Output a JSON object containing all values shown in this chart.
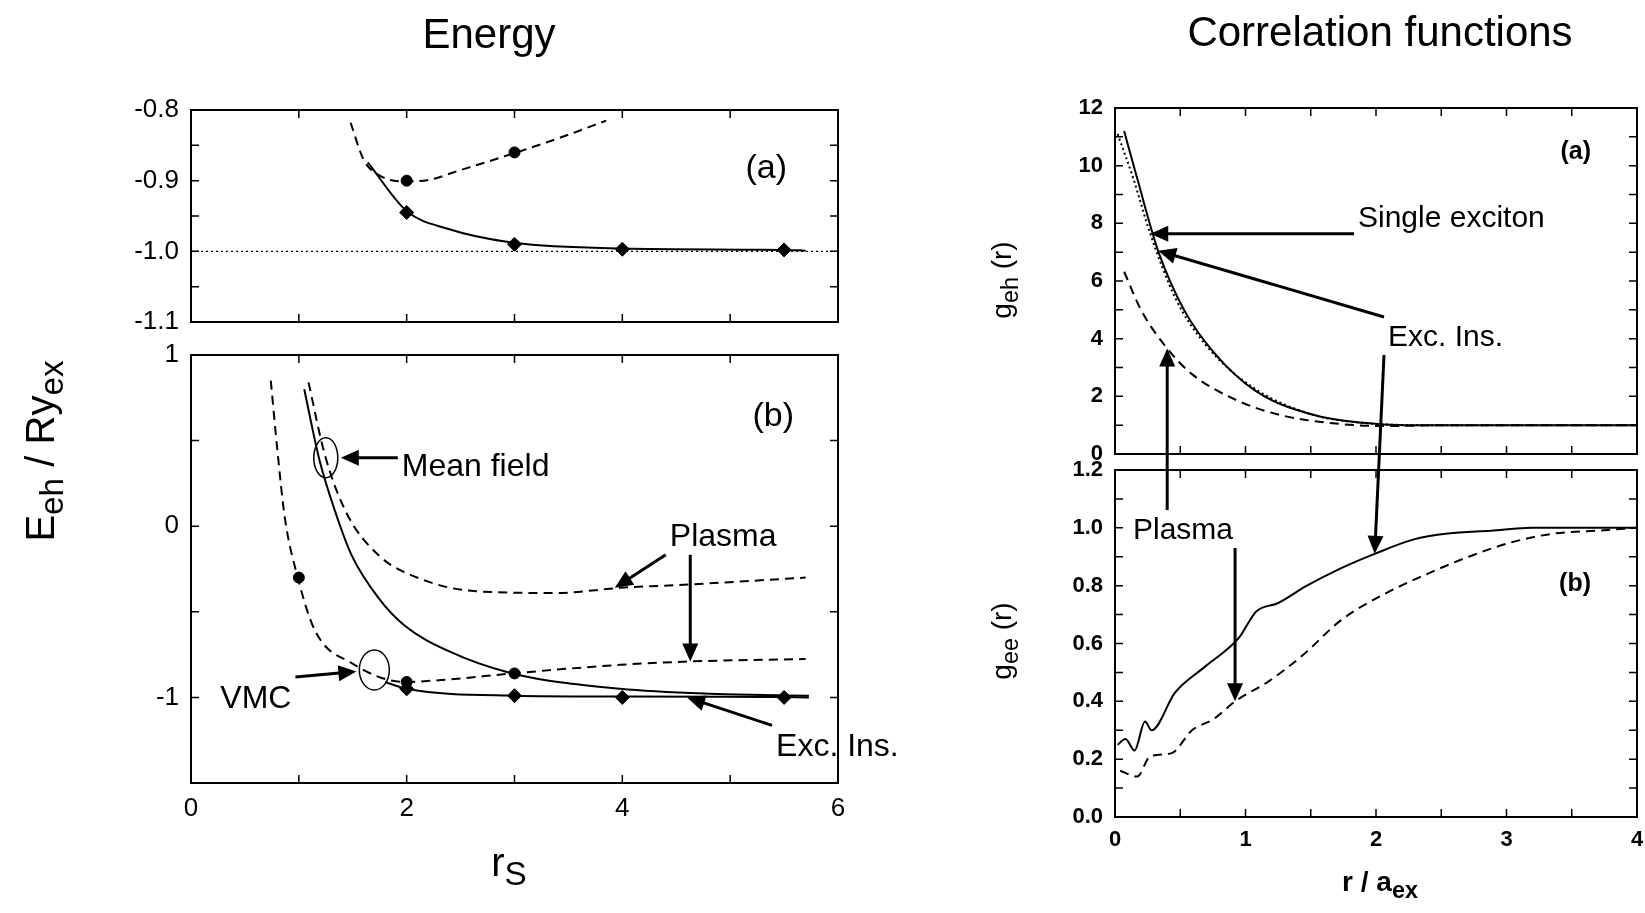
{
  "chart_data": [
    {
      "type": "line",
      "title": "Energy",
      "xlim": [
        0,
        6
      ],
      "xticks": [
        0,
        1,
        2,
        3,
        4,
        5,
        6
      ],
      "ylim": [
        -1.1,
        -0.8
      ],
      "yticks": [
        -1.1,
        {
          "value": -1.05,
          "label": null
        },
        {
          "value": -1.0,
          "label": "-1.0"
        },
        {
          "value": -0.95,
          "label": null
        },
        -0.9,
        {
          "value": -0.85,
          "label": null
        },
        -0.8
      ],
      "tick_labels": "y",
      "annotations": [
        "(a)"
      ],
      "ref_lines": [
        {
          "axis": "y",
          "value": -1.0,
          "line_style": "dotted",
          "color": "#000000"
        }
      ],
      "series": [
        {
          "color": "#000000",
          "line_style": "dashed",
          "marker": "none",
          "x": [
            1.48,
            1.6,
            1.75,
            2.0,
            2.2,
            2.5,
            3.0,
            3.5,
            3.85
          ],
          "values": [
            -0.818,
            -0.87,
            -0.893,
            -0.901,
            -0.899,
            -0.885,
            -0.861,
            -0.835,
            -0.815
          ]
        },
        {
          "type": "scatter",
          "color": "#000000",
          "marker": "circle",
          "x": [
            2,
            3
          ],
          "values": [
            -0.9,
            -0.86
          ]
        },
        {
          "color": "#000000",
          "line_style": "solid",
          "marker": "none",
          "x": [
            1.64,
            2.0,
            2.38,
            3.0,
            4.0,
            5.5,
            5.7
          ],
          "values": [
            -0.874,
            -0.943,
            -0.968,
            -0.988,
            -0.996,
            -0.998,
            -0.999
          ]
        },
        {
          "type": "scatter",
          "color": "#000000",
          "marker": "diamond",
          "x": [
            2,
            3,
            4,
            5.5
          ],
          "values": [
            -0.945,
            -0.99,
            -0.997,
            -0.998
          ]
        }
      ]
    },
    {
      "type": "line",
      "xlabel": "r$_{S}$",
      "ylabel": "E$_{eh}$ / Ry$_{ex}$",
      "xlim": [
        0,
        6
      ],
      "xticks": [
        0,
        {
          "value": 1,
          "label": null
        },
        2,
        {
          "value": 3,
          "label": null
        },
        4,
        {
          "value": 5,
          "label": null
        },
        6
      ],
      "ylim": [
        -1.5,
        1
      ],
      "yticks": [
        -1,
        {
          "value": -0.5,
          "label": null
        },
        0,
        {
          "value": 0.5,
          "label": null
        },
        1
      ],
      "annotations": [
        "(b)",
        {
          "text": "Mean field",
          "x": 1.25,
          "y": 0.4
        },
        {
          "text": "Plasma",
          "x": 3.93,
          "y": -0.36
        },
        {
          "text": "VMC",
          "x": 1.7,
          "y": -0.84
        },
        {
          "text": "Exc. Ins.",
          "x": 4.6,
          "y": -1.0
        }
      ],
      "series": [
        {
          "color": "#000000",
          "line_style": "dashed",
          "marker": "none",
          "x": [
            0.74,
            0.8,
            0.87,
            0.99,
            1.15,
            1.49,
            1.98,
            2.39,
            2.98,
            3.98,
            4.63,
            5.7
          ],
          "values": [
            0.85,
            0.45,
            0.05,
            -0.3,
            -0.61,
            -0.8,
            -0.91,
            -0.895,
            -0.86,
            -0.81,
            -0.79,
            -0.776
          ]
        },
        {
          "type": "scatter",
          "color": "#000000",
          "marker": "circle",
          "x": [
            1,
            2,
            3
          ],
          "values": [
            -0.3,
            -0.91,
            -0.86
          ]
        },
        {
          "color": "#000000",
          "line_style": "solid",
          "marker": "none",
          "x": [
            1.8,
            2,
            3,
            4,
            5.5,
            5.73
          ],
          "values": [
            -0.91,
            -0.95,
            -0.99,
            -0.995,
            -0.998,
            -1.0
          ]
        },
        {
          "type": "scatter",
          "color": "#000000",
          "marker": "diamond",
          "x": [
            2,
            3,
            4,
            5.5
          ],
          "values": [
            -0.95,
            -0.99,
            -1.0,
            -1.0
          ]
        },
        {
          "color": "#000000",
          "line_style": "solid",
          "marker": "none",
          "x": [
            1.05,
            1.19,
            1.34,
            1.49,
            1.74,
            1.98,
            2.39,
            2.98,
            3.98,
            4.88,
            5.73
          ],
          "values": [
            0.8,
            0.39,
            0.08,
            -0.17,
            -0.42,
            -0.58,
            -0.73,
            -0.86,
            -0.95,
            -0.98,
            -0.99
          ]
        },
        {
          "color": "#000000",
          "line_style": "dashed",
          "marker": "none",
          "x": [
            1.09,
            1.24,
            1.44,
            1.74,
            2.14,
            2.64,
            3.39,
            3.98,
            4.63,
            5.7
          ],
          "values": [
            0.84,
            0.42,
            0.08,
            -0.17,
            -0.31,
            -0.38,
            -0.39,
            -0.36,
            -0.34,
            -0.3
          ]
        }
      ]
    },
    {
      "type": "line",
      "title": "Correlation functions",
      "ylabel": "g$_{eh}$ (r)",
      "xlim": [
        0,
        4
      ],
      "xticks": [
        0,
        {
          "value": 0.5,
          "label": null
        },
        1,
        {
          "value": 1.5,
          "label": null
        },
        2,
        {
          "value": 2.5,
          "label": null
        },
        3,
        {
          "value": 3.5,
          "label": null
        },
        4
      ],
      "ylim": [
        0,
        12
      ],
      "yticks": [
        0,
        {
          "value": 1,
          "label": null
        },
        2,
        {
          "value": 3,
          "label": null
        },
        4,
        {
          "value": 5,
          "label": null
        },
        6,
        {
          "value": 7,
          "label": null
        },
        8,
        {
          "value": 9,
          "label": null
        },
        10,
        {
          "value": 11,
          "label": null
        },
        12
      ],
      "tick_labels": "y",
      "annotations": [
        "(a)",
        "Single exciton",
        "Exc. Ins."
      ],
      "series": [
        {
          "color": "#000000",
          "line_style": "solid",
          "marker": "none",
          "x": [
            0.07,
            0.17,
            0.33,
            0.53,
            0.76,
            1.08,
            1.51,
            1.9,
            2.22,
            4
          ],
          "values": [
            11.2,
            9.56,
            7.05,
            4.99,
            3.51,
            2.18,
            1.37,
            1.08,
            1.0,
            1.0
          ]
        },
        {
          "color": "#000000",
          "line_style": "dotted",
          "marker": "none",
          "x": [
            0.02,
            0.14,
            0.27,
            0.46,
            0.69,
            1.05,
            1.51,
            1.9,
            2.39,
            4
          ],
          "values": [
            11.1,
            9.56,
            7.64,
            5.43,
            3.81,
            2.33,
            1.37,
            1.08,
            1.0,
            1.0
          ]
        },
        {
          "color": "#000000",
          "line_style": "dashed",
          "marker": "none",
          "x": [
            0.07,
            0.2,
            0.4,
            0.59,
            0.92,
            1.25,
            1.64,
            2.06,
            2.55,
            4
          ],
          "values": [
            6.32,
            4.99,
            3.66,
            2.77,
            1.89,
            1.37,
            1.08,
            0.97,
            1.0,
            1.0
          ]
        }
      ]
    },
    {
      "type": "line",
      "xlabel": "r / a$_{ex}$",
      "ylabel": "g$_{ee}$ (r)",
      "xlim": [
        0,
        4
      ],
      "xticks": [
        0,
        {
          "value": 0.5,
          "label": null
        },
        1,
        {
          "value": 1.5,
          "label": null
        },
        2,
        {
          "value": 2.5,
          "label": null
        },
        3,
        {
          "value": 3.5,
          "label": null
        },
        4
      ],
      "ylim": [
        0,
        1.2
      ],
      "yticks": [
        {
          "value": 0,
          "label": "0.0"
        },
        {
          "value": 0.1,
          "label": null
        },
        0.2,
        {
          "value": 0.3,
          "label": null
        },
        0.4,
        {
          "value": 0.5,
          "label": null
        },
        0.6,
        {
          "value": 0.7,
          "label": null
        },
        0.8,
        {
          "value": 0.9,
          "label": null
        },
        {
          "value": 1.0,
          "label": "1.0"
        },
        {
          "value": 1.1,
          "label": null
        },
        1.2
      ],
      "annotations": [
        "(b)",
        "Plasma"
      ],
      "series": [
        {
          "color": "#000000",
          "line_style": "solid",
          "marker": "none",
          "x": [
            0.02,
            0.08,
            0.15,
            0.23,
            0.28,
            0.46,
            0.69,
            0.95,
            1.02,
            1.08,
            1.25,
            1.47,
            1.73,
            1.99,
            2.29,
            2.55,
            2.88,
            3.2,
            4
          ],
          "values": [
            0.25,
            0.27,
            0.23,
            0.33,
            0.3,
            0.43,
            0.52,
            0.62,
            0.67,
            0.71,
            0.74,
            0.8,
            0.86,
            0.91,
            0.96,
            0.98,
            0.99,
            1.0,
            1.0
          ]
        },
        {
          "color": "#000000",
          "line_style": "dashed",
          "marker": "none",
          "x": [
            0.04,
            0.17,
            0.27,
            0.43,
            0.59,
            0.76,
            0.92,
            1.18,
            1.44,
            1.73,
            2.06,
            2.39,
            2.71,
            3.04,
            3.36,
            3.69,
            4
          ],
          "values": [
            0.16,
            0.14,
            0.21,
            0.22,
            0.3,
            0.34,
            0.4,
            0.47,
            0.56,
            0.68,
            0.77,
            0.84,
            0.9,
            0.95,
            0.98,
            0.99,
            1.0
          ]
        }
      ]
    }
  ]
}
